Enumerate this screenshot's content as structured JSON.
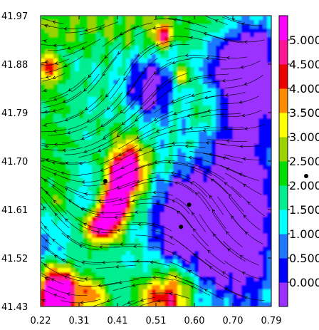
{
  "chart_data": {
    "type": "heatmap",
    "title": "",
    "xlabel": "",
    "ylabel": "",
    "xlim": [
      0.22,
      0.79
    ],
    "ylim": [
      41.43,
      41.97
    ],
    "x_ticks": [
      "0.22",
      "0.31",
      "0.41",
      "0.51",
      "0.60",
      "0.70",
      "0.79"
    ],
    "y_ticks": [
      "41.97",
      "41.88",
      "41.79",
      "41.70",
      "41.61",
      "41.52",
      "41.43"
    ],
    "colorbar": {
      "range": [
        -0.5,
        5.5
      ],
      "ticks": [
        "0.000",
        "0.500",
        "1.000",
        "1.500",
        "2.000",
        "2.500",
        "3.000",
        "3.500",
        "4.000",
        "4.500",
        "5.000"
      ],
      "colors": [
        "#9b30ff",
        "#0000ff",
        "#1e78ff",
        "#00ffff",
        "#00ee90",
        "#00dd00",
        "#9ad300",
        "#ffff00",
        "#ff8c00",
        "#ee0000",
        "#ff1493",
        "#ff00ff"
      ]
    },
    "overlay": "streamlines (wind direction arrows)",
    "markers": [
      {
        "x": 0.38,
        "y": 41.663
      },
      {
        "x": 0.587,
        "y": 41.619
      },
      {
        "x": 0.567,
        "y": 41.578
      }
    ],
    "offplot_marker": true
  }
}
